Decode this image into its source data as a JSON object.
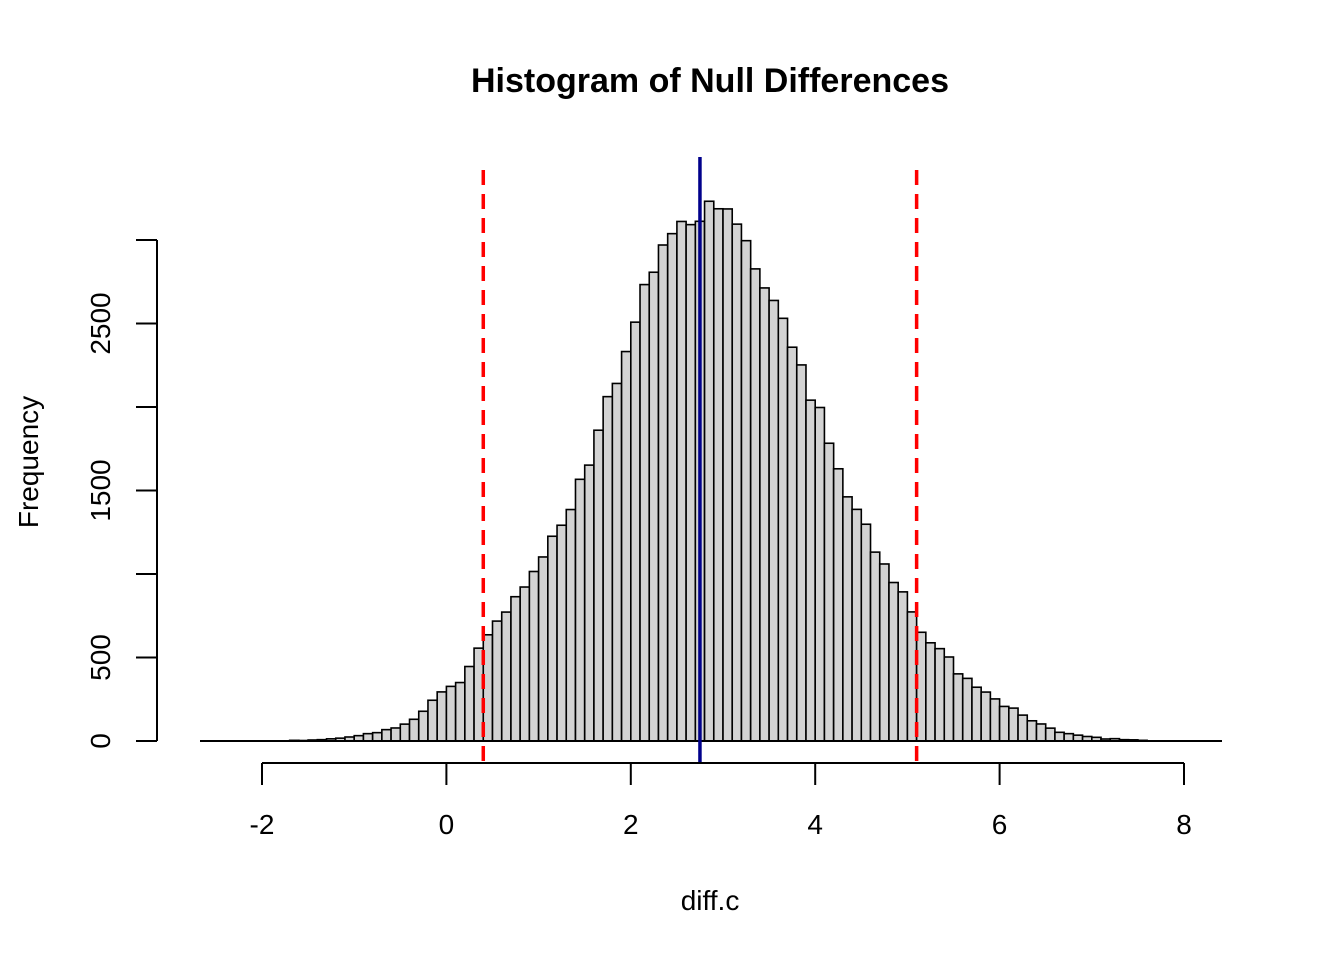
{
  "chart_data": {
    "type": "bar",
    "title": "Histogram of Null Differences",
    "xlabel": "diff.c",
    "ylabel": "Frequency",
    "xlim": [
      -2.7,
      8.4
    ],
    "ylim": [
      0,
      3500
    ],
    "x_ticks": [
      -2,
      0,
      2,
      4,
      6,
      8
    ],
    "y_ticks": [
      0,
      500,
      1000,
      1500,
      2000,
      2500,
      3000
    ],
    "y_tick_labels": [
      "0",
      "500",
      "",
      "1500",
      "",
      "2500",
      ""
    ],
    "bin_width": 0.1,
    "bin_start": -1.7,
    "counts": [
      4,
      3,
      6,
      8,
      13,
      17,
      24,
      32,
      44,
      50,
      68,
      78,
      101,
      130,
      178,
      244,
      294,
      327,
      350,
      446,
      556,
      636,
      718,
      772,
      864,
      922,
      1015,
      1102,
      1226,
      1292,
      1386,
      1567,
      1652,
      1861,
      2062,
      2141,
      2332,
      2508,
      2733,
      2807,
      2970,
      3038,
      3111,
      3092,
      3112,
      3232,
      3187,
      3186,
      3095,
      2996,
      2827,
      2713,
      2638,
      2531,
      2358,
      2252,
      2041,
      1997,
      1783,
      1630,
      1462,
      1387,
      1298,
      1131,
      1060,
      949,
      893,
      773,
      651,
      588,
      553,
      503,
      402,
      375,
      322,
      293,
      252,
      207,
      197,
      155,
      121,
      102,
      77,
      52,
      44,
      35,
      27,
      22,
      12,
      14,
      8,
      7,
      4
    ]
  },
  "reference_lines": {
    "lower_quantile": {
      "x": 0.4,
      "color": "#ff0000",
      "style": "dashed"
    },
    "upper_quantile": {
      "x": 5.1,
      "color": "#ff0000",
      "style": "dashed"
    },
    "observed": {
      "x": 2.75,
      "color": "#00008b",
      "style": "solid"
    }
  },
  "colors": {
    "bar_fill": "#d3d3d3",
    "bar_stroke": "#000000"
  }
}
